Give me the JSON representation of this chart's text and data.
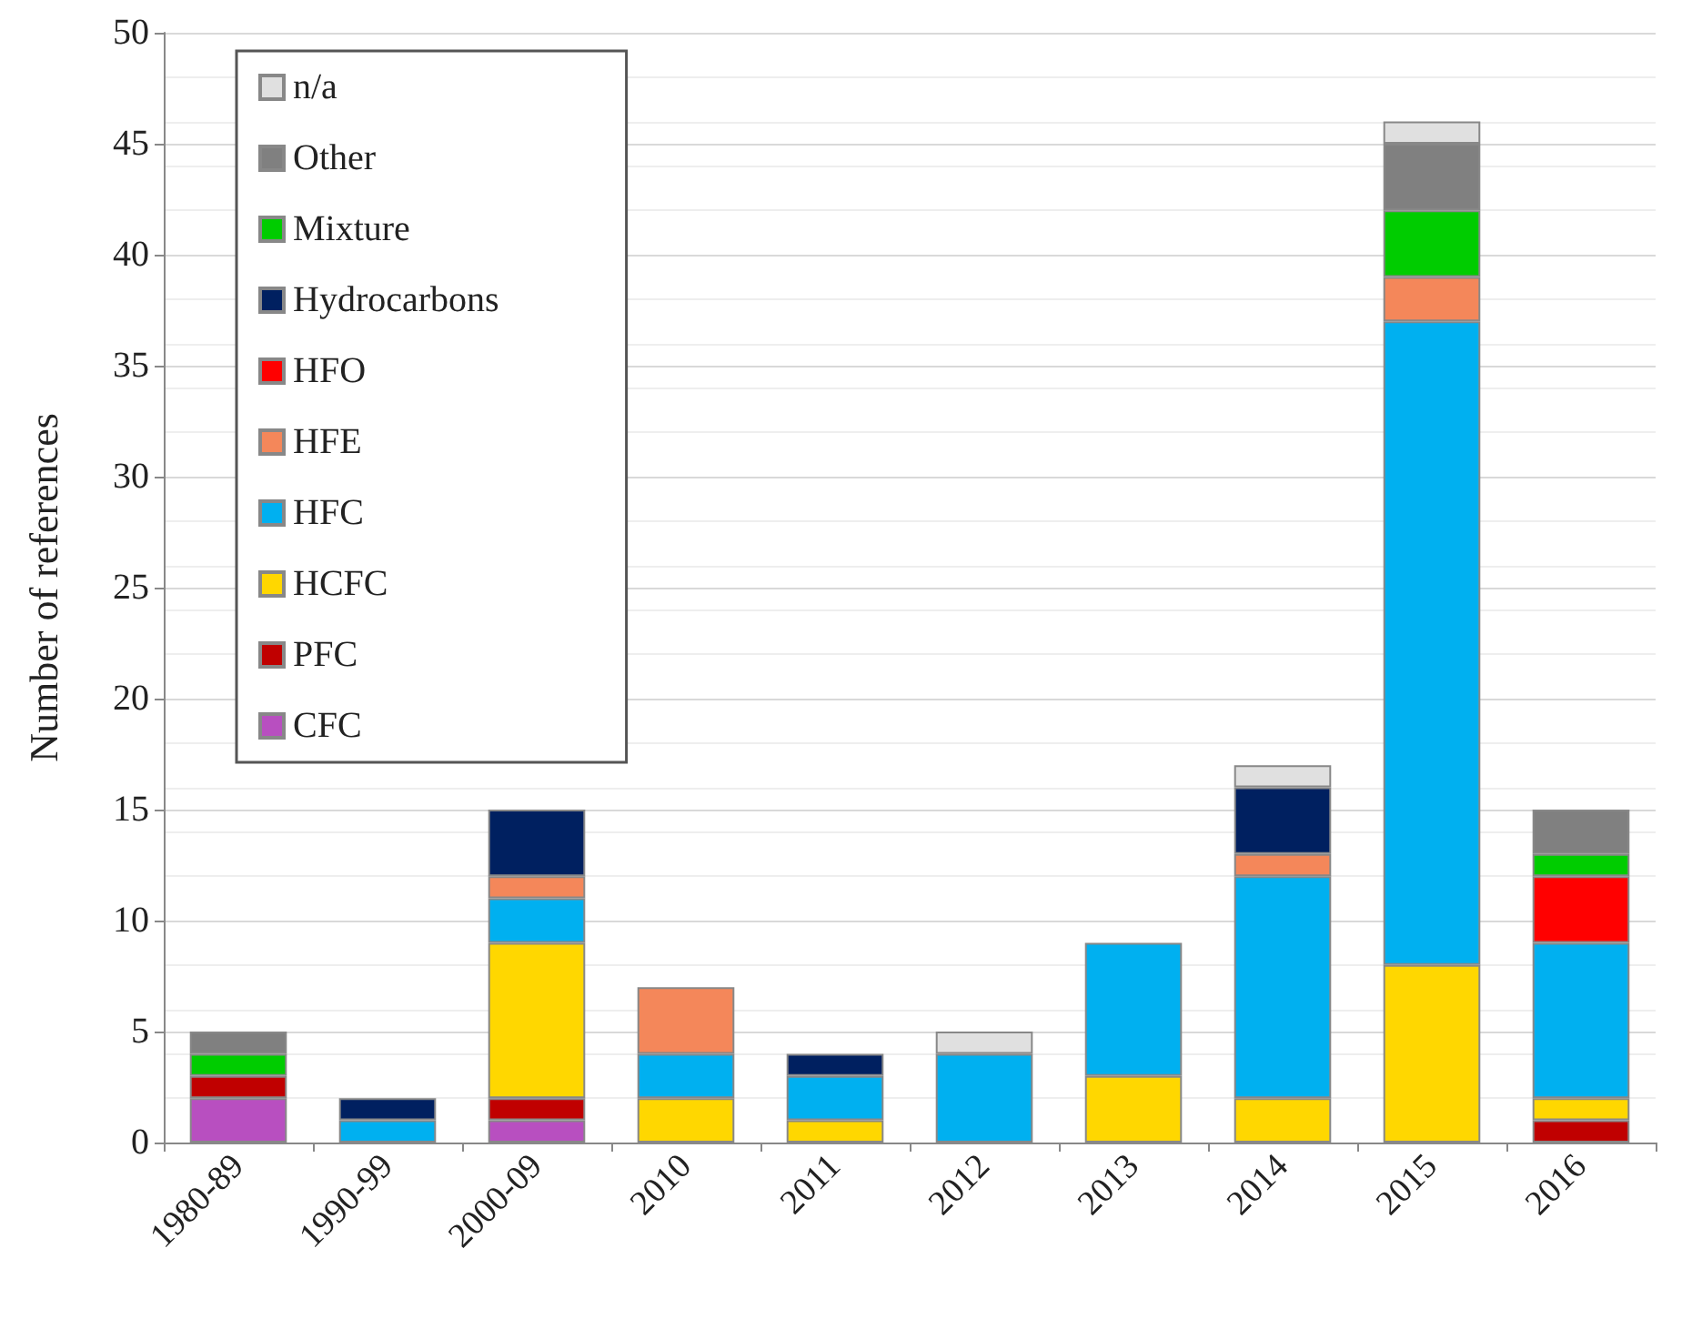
{
  "chart_data": {
    "type": "bar",
    "stacked": true,
    "ylabel": "Number of references",
    "ylim": [
      0,
      50
    ],
    "yticks": [
      0,
      5,
      10,
      15,
      20,
      25,
      30,
      35,
      40,
      45,
      50
    ],
    "grid": "y",
    "legend": "top left",
    "categories": [
      "1980-89",
      "1990-99",
      "2000-09",
      "2010",
      "2011",
      "2012",
      "2013",
      "2014",
      "2015",
      "2016"
    ],
    "series": [
      {
        "name": "CFC",
        "color": "#b84fc0",
        "values": [
          2,
          null,
          1,
          null,
          null,
          null,
          null,
          null,
          null,
          null
        ]
      },
      {
        "name": "PFC",
        "color": "#c00000",
        "values": [
          1,
          null,
          1,
          null,
          null,
          null,
          null,
          null,
          null,
          1
        ]
      },
      {
        "name": "HCFC",
        "color": "#ffd700",
        "values": [
          null,
          null,
          7,
          2,
          1,
          null,
          3,
          2,
          8,
          1
        ]
      },
      {
        "name": "HFC",
        "color": "#00b0f0",
        "values": [
          null,
          1,
          2,
          2,
          2,
          4,
          6,
          10,
          29,
          7
        ]
      },
      {
        "name": "HFE",
        "color": "#f4875a",
        "values": [
          null,
          null,
          1,
          3,
          null,
          null,
          null,
          1,
          2,
          null
        ]
      },
      {
        "name": "HFO",
        "color": "#ff0000",
        "values": [
          null,
          null,
          null,
          null,
          null,
          null,
          null,
          null,
          null,
          3
        ]
      },
      {
        "name": "Hydrocarbons",
        "color": "#002060",
        "values": [
          null,
          1,
          3,
          null,
          1,
          null,
          null,
          3,
          null,
          null
        ]
      },
      {
        "name": "Mixture",
        "color": "#00cc00",
        "values": [
          1,
          null,
          null,
          null,
          null,
          null,
          null,
          null,
          3,
          1
        ]
      },
      {
        "name": "Other",
        "color": "#808080",
        "values": [
          1,
          null,
          null,
          null,
          null,
          null,
          null,
          null,
          3,
          2
        ]
      },
      {
        "name": "n/a",
        "color": "#e0e0e0",
        "values": [
          null,
          null,
          null,
          null,
          null,
          1,
          null,
          1,
          1,
          null
        ]
      }
    ]
  }
}
